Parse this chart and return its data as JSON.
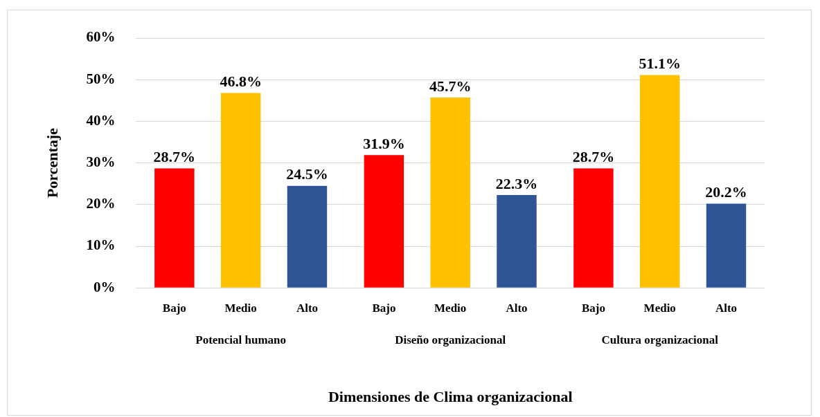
{
  "chart_data": {
    "type": "bar",
    "xlabel": "Dimensiones de Clima organizacional",
    "ylabel": "Porcentaje",
    "categories": [
      "Potencial humano",
      "Diseño organizacional",
      "Cultura organizacional"
    ],
    "series": [
      {
        "name": "Bajo",
        "color": "#ff0000",
        "values": [
          28.7,
          31.9,
          28.7
        ],
        "value_labels": [
          "28.7%",
          "31.9%",
          "28.7%"
        ]
      },
      {
        "name": "Medio",
        "color": "#ffc000",
        "values": [
          46.8,
          45.7,
          51.1
        ],
        "value_labels": [
          "46.8%",
          "45.7%",
          "51.1%"
        ]
      },
      {
        "name": "Alto",
        "color": "#2f5597",
        "values": [
          24.5,
          22.3,
          20.2
        ],
        "value_labels": [
          "24.5%",
          "22.3%",
          "20.2%"
        ]
      }
    ],
    "ylim": [
      0,
      60
    ],
    "yticks": [
      {
        "value": 0,
        "label": "0%"
      },
      {
        "value": 10,
        "label": "10%"
      },
      {
        "value": 20,
        "label": "20%"
      },
      {
        "value": 30,
        "label": "30%"
      },
      {
        "value": 40,
        "label": "40%"
      },
      {
        "value": 50,
        "label": "50%"
      },
      {
        "value": 60,
        "label": "60%"
      }
    ],
    "grid": "y",
    "legend": false
  }
}
